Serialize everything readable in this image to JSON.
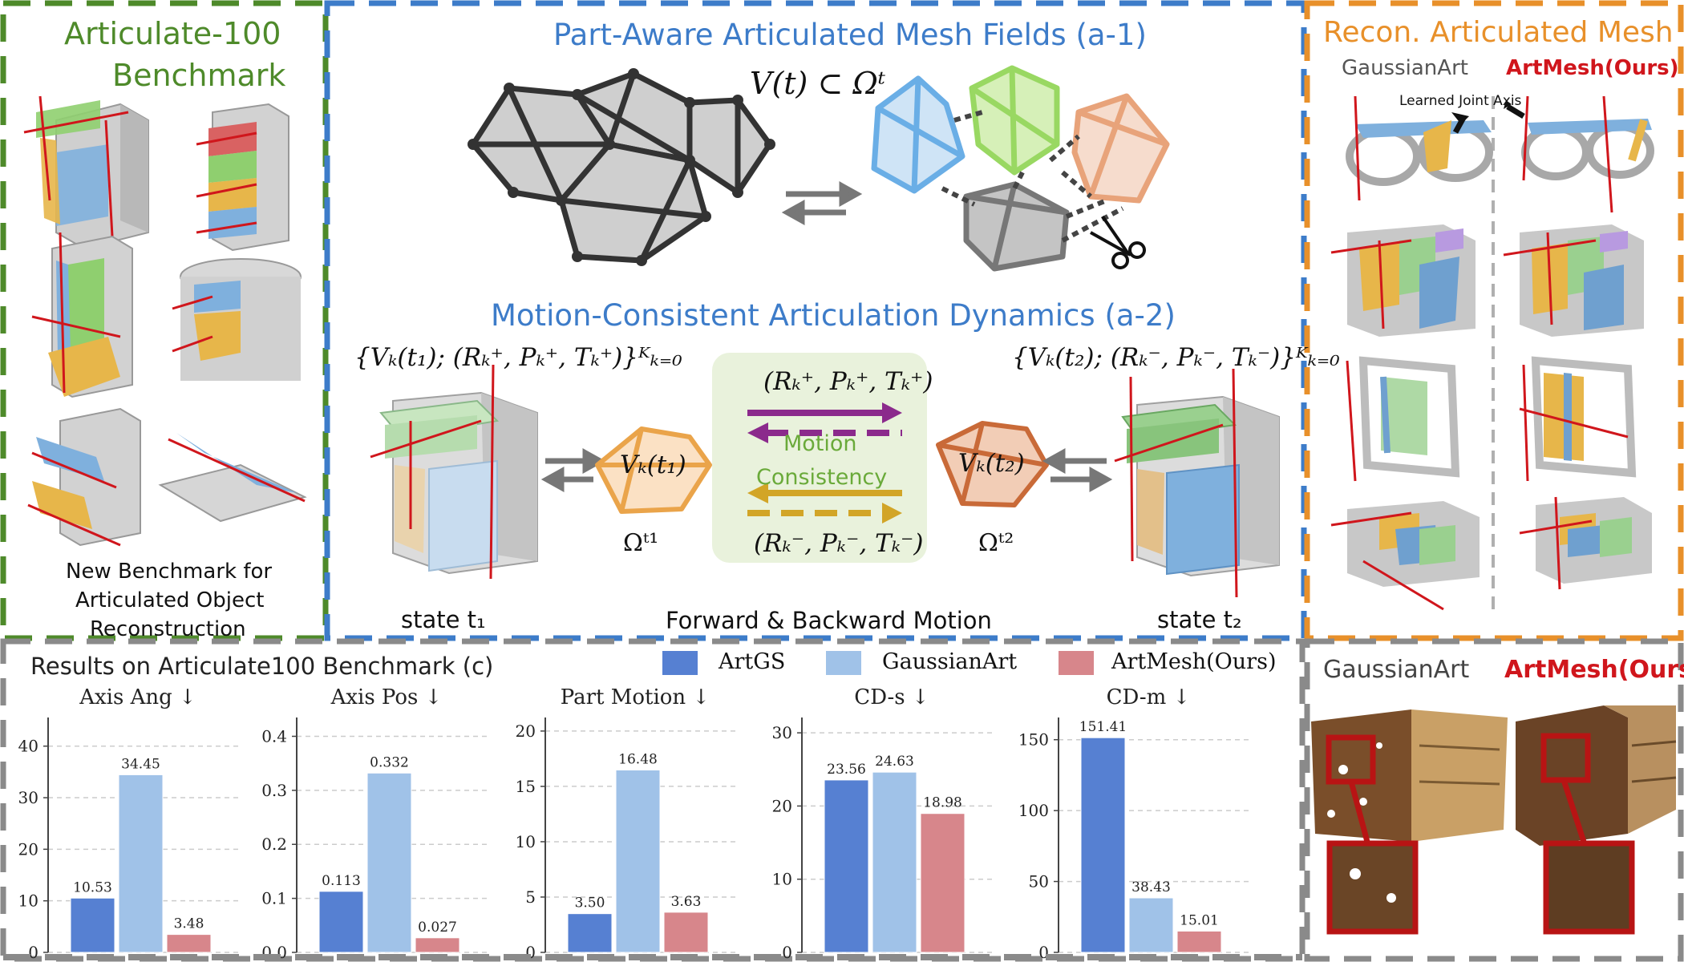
{
  "benchmark_panel": {
    "title_line1": "Articulate-100",
    "title_line2": "Benchmark",
    "caption_line1": "New Benchmark for",
    "caption_line2": "Articulated Object",
    "caption_line3": "Reconstruction",
    "title_color": "#4e8a2a"
  },
  "mesh_fields": {
    "title": "Part-Aware Articulated Mesh Fields (a-1)",
    "formula": "V(t) ⊂ Ωᵗ",
    "title_color": "#3d7cc9"
  },
  "dynamics": {
    "title": "Motion-Consistent Articulation Dynamics (a-2)",
    "formula_left": "{Vₖ(t₁); (Rₖ⁺, Pₖ⁺, Tₖ⁺)}ᴷₖ₌₀",
    "formula_right": "{Vₖ(t₂); (Rₖ⁻, Pₖ⁻, Tₖ⁻)}ᴷₖ₌₀",
    "vk_t1": "Vₖ(t₁)",
    "vk_t2": "Vₖ(t₂)",
    "omega_t1": "Ωᵗ¹",
    "omega_t2": "Ωᵗ²",
    "plus_params": "(Rₖ⁺, Pₖ⁺, Tₖ⁺)",
    "minus_params": "(Rₖ⁻, Pₖ⁻, Tₖ⁻)",
    "consistency_line1": "Motion",
    "consistency_line2": "Consistency",
    "state_t1": "state t₁",
    "state_t2": "state t₂",
    "forward_backward": "Forward & Backward Motion"
  },
  "recon_panel": {
    "title": "Recon. Articulated Mesh",
    "col_left": "GaussianArt",
    "col_right": "ArtMesh(Ours)",
    "joint_axis_label": "Learned Joint Axis",
    "title_color": "#e8902a",
    "ours_color": "#d0161c"
  },
  "texture_panel": {
    "col_left": "GaussianArt",
    "col_right": "ArtMesh(Ours)"
  },
  "results": {
    "title": "Results on Articulate100 Benchmark (c)",
    "legend": [
      "ArtGS",
      "GaussianArt",
      "ArtMesh(Ours)"
    ],
    "colors": [
      "#5680d2",
      "#a0c2e8",
      "#d7868b"
    ]
  },
  "chart_data": [
    {
      "type": "bar",
      "title": "Axis Ang ↓",
      "categories": [
        "ArtGS",
        "GaussianArt",
        "ArtMesh(Ours)"
      ],
      "values": [
        10.53,
        34.45,
        3.48
      ],
      "labels": [
        "10.53",
        "34.45",
        "3.48"
      ],
      "ylim": [
        0,
        44
      ],
      "yticks": [
        0,
        10,
        20,
        30,
        40
      ],
      "yticklabels": [
        "0",
        "10",
        "20",
        "30",
        "40"
      ]
    },
    {
      "type": "bar",
      "title": "Axis Pos ↓",
      "categories": [
        "ArtGS",
        "GaussianArt",
        "ArtMesh(Ours)"
      ],
      "values": [
        0.113,
        0.332,
        0.027
      ],
      "labels": [
        "0.113",
        "0.332",
        "0.027"
      ],
      "ylim": [
        0,
        0.42
      ],
      "yticks": [
        0,
        0.1,
        0.2,
        0.3,
        0.4
      ],
      "yticklabels": [
        "0.0",
        "0.1",
        "0.2",
        "0.3",
        "0.4"
      ]
    },
    {
      "type": "bar",
      "title": "Part Motion ↓",
      "categories": [
        "ArtGS",
        "GaussianArt",
        "ArtMesh(Ours)"
      ],
      "values": [
        3.5,
        16.48,
        3.63
      ],
      "labels": [
        "3.50",
        "16.48",
        "3.63"
      ],
      "ylim": [
        0,
        20.5
      ],
      "yticks": [
        0,
        5,
        10,
        15,
        20
      ],
      "yticklabels": [
        "0",
        "5",
        "10",
        "15",
        "20"
      ]
    },
    {
      "type": "bar",
      "title": "CD-s ↓",
      "categories": [
        "ArtGS",
        "GaussianArt",
        "ArtMesh(Ours)"
      ],
      "values": [
        23.56,
        24.63,
        18.98
      ],
      "labels": [
        "23.56",
        "24.63",
        "18.98"
      ],
      "ylim": [
        0,
        31
      ],
      "yticks": [
        0,
        10,
        20,
        30
      ],
      "yticklabels": [
        "0",
        "10",
        "20",
        "30"
      ]
    },
    {
      "type": "bar",
      "title": "CD-m ↓",
      "categories": [
        "ArtGS",
        "GaussianArt",
        "ArtMesh(Ours)"
      ],
      "values": [
        151.41,
        38.43,
        15.01
      ],
      "labels": [
        "151.41",
        "38.43",
        "15.01"
      ],
      "ylim": [
        0,
        160
      ],
      "yticks": [
        0,
        50,
        100,
        150
      ],
      "yticklabels": [
        "0",
        "50",
        "100",
        "150"
      ]
    }
  ]
}
